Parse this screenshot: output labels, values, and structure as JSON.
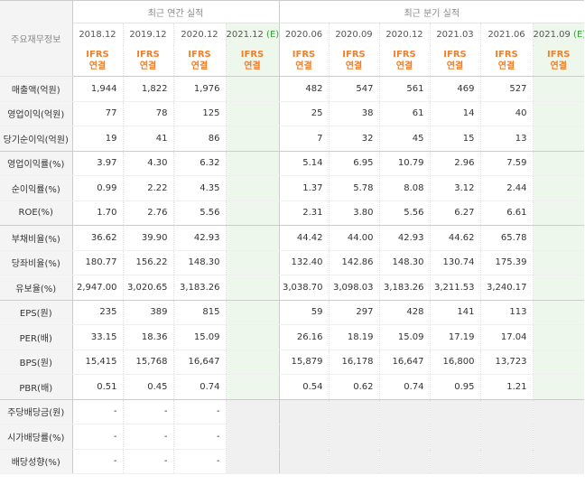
{
  "header": {
    "row_label": "주요재무정보",
    "annual_group": "최근 연간 실적",
    "quarter_group": "최근 분기 실적",
    "annual_periods": [
      "2018.12",
      "2019.12",
      "2020.12",
      "2021.12"
    ],
    "annual_estimate_marker": "(E)",
    "quarter_periods": [
      "2020.06",
      "2020.09",
      "2020.12",
      "2021.03",
      "2021.06",
      "2021.09"
    ],
    "quarter_estimate_marker": "(E)",
    "ifrs_line1": "IFRS",
    "ifrs_line2": "연결"
  },
  "rows": [
    {
      "label": "매출액(억원)",
      "annual": [
        "1,944",
        "1,822",
        "1,976",
        ""
      ],
      "quarter": [
        "482",
        "547",
        "561",
        "469",
        "527",
        ""
      ]
    },
    {
      "label": "영업이익(억원)",
      "annual": [
        "77",
        "78",
        "125",
        ""
      ],
      "quarter": [
        "25",
        "38",
        "61",
        "14",
        "40",
        ""
      ]
    },
    {
      "label": "당기순이익(억원)",
      "annual": [
        "19",
        "41",
        "86",
        ""
      ],
      "quarter": [
        "7",
        "32",
        "45",
        "15",
        "13",
        ""
      ]
    },
    {
      "label": "영업이익률(%)",
      "annual": [
        "3.97",
        "4.30",
        "6.32",
        ""
      ],
      "quarter": [
        "5.14",
        "6.95",
        "10.79",
        "2.96",
        "7.59",
        ""
      ]
    },
    {
      "label": "순이익률(%)",
      "annual": [
        "0.99",
        "2.22",
        "4.35",
        ""
      ],
      "quarter": [
        "1.37",
        "5.78",
        "8.08",
        "3.12",
        "2.44",
        ""
      ]
    },
    {
      "label": "ROE(%)",
      "annual": [
        "1.70",
        "2.76",
        "5.56",
        ""
      ],
      "quarter": [
        "2.31",
        "3.80",
        "5.56",
        "6.27",
        "6.61",
        ""
      ]
    },
    {
      "label": "부채비율(%)",
      "annual": [
        "36.62",
        "39.90",
        "42.93",
        ""
      ],
      "quarter": [
        "44.42",
        "44.00",
        "42.93",
        "44.62",
        "65.78",
        ""
      ]
    },
    {
      "label": "당좌비율(%)",
      "annual": [
        "180.77",
        "156.22",
        "148.30",
        ""
      ],
      "quarter": [
        "132.40",
        "142.86",
        "148.30",
        "130.74",
        "175.39",
        ""
      ]
    },
    {
      "label": "유보율(%)",
      "annual": [
        "2,947.00",
        "3,020.65",
        "3,183.26",
        ""
      ],
      "quarter": [
        "3,038.70",
        "3,098.03",
        "3,183.26",
        "3,211.53",
        "3,240.17",
        ""
      ]
    },
    {
      "label": "EPS(원)",
      "annual": [
        "235",
        "389",
        "815",
        ""
      ],
      "quarter": [
        "59",
        "297",
        "428",
        "141",
        "113",
        ""
      ]
    },
    {
      "label": "PER(배)",
      "annual": [
        "33.15",
        "18.36",
        "15.09",
        ""
      ],
      "quarter": [
        "26.16",
        "18.19",
        "15.09",
        "17.19",
        "17.04",
        ""
      ]
    },
    {
      "label": "BPS(원)",
      "annual": [
        "15,415",
        "15,768",
        "16,647",
        ""
      ],
      "quarter": [
        "15,879",
        "16,178",
        "16,647",
        "16,800",
        "13,723",
        ""
      ]
    },
    {
      "label": "PBR(배)",
      "annual": [
        "0.51",
        "0.45",
        "0.74",
        ""
      ],
      "quarter": [
        "0.54",
        "0.62",
        "0.74",
        "0.95",
        "1.21",
        ""
      ]
    },
    {
      "label": "주당배당금(원)",
      "annual": [
        "-",
        "-",
        "-",
        ""
      ],
      "quarter": [
        "",
        "",
        "",
        "",
        "",
        ""
      ]
    },
    {
      "label": "시가배당률(%)",
      "annual": [
        "-",
        "-",
        "-",
        ""
      ],
      "quarter": [
        "",
        "",
        "",
        "",
        "",
        ""
      ]
    },
    {
      "label": "배당성향(%)",
      "annual": [
        "-",
        "-",
        "-",
        ""
      ],
      "quarter": [
        "",
        "",
        "",
        "",
        "",
        ""
      ]
    }
  ],
  "group_end_rows": [
    2,
    5,
    8,
    12
  ]
}
